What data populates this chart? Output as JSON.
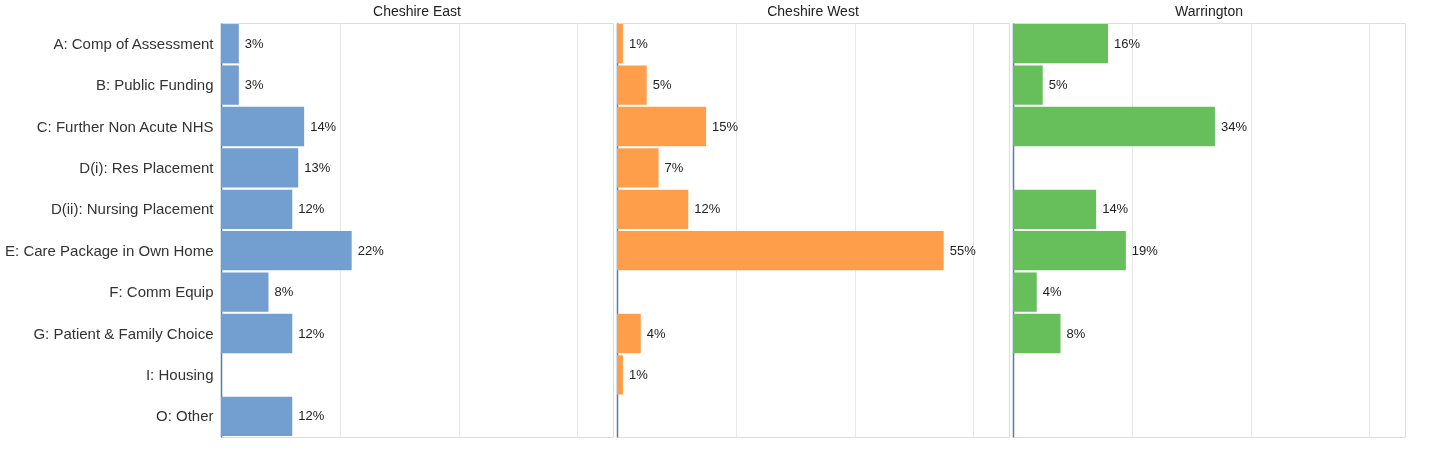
{
  "chart_data": [
    {
      "type": "bar",
      "orientation": "horizontal",
      "title": "Cheshire East",
      "categories": [
        "A: Comp of Assessment",
        "B: Public Funding",
        "C: Further Non Acute NHS",
        "D(i): Res Placement",
        "D(ii): Nursing Placement",
        "E: Care Package in Own Home",
        "F: Comm Equip",
        "G: Patient & Family Choice",
        "I: Housing",
        "O: Other"
      ],
      "values": [
        3,
        3,
        14,
        13,
        12,
        22,
        8,
        12,
        null,
        12
      ],
      "value_labels": [
        "3%",
        "3%",
        "14%",
        "13%",
        "12%",
        "22%",
        "8%",
        "12%",
        null,
        "12%"
      ],
      "color": "#729fcf",
      "xlim": [
        0,
        66
      ],
      "xticks": [
        {
          "value": 20,
          "label": null
        },
        {
          "value": 40,
          "label": null
        },
        {
          "value": 60,
          "label": null
        }
      ],
      "grid": "x",
      "tick_labels": "y"
    },
    {
      "type": "bar",
      "orientation": "horizontal",
      "title": "Cheshire West",
      "categories": [
        null,
        null,
        null,
        null,
        null,
        null,
        null,
        null,
        null,
        null
      ],
      "values": [
        1,
        5,
        15,
        7,
        12,
        55,
        null,
        4,
        1,
        null
      ],
      "value_labels": [
        "1%",
        "5%",
        "15%",
        "7%",
        "12%",
        "55%",
        null,
        "4%",
        "1%",
        null
      ],
      "color": "#ff9e4a",
      "xlim": [
        0,
        66
      ],
      "xticks": [
        {
          "value": 20,
          "label": null
        },
        {
          "value": 40,
          "label": null
        },
        {
          "value": 60,
          "label": null
        }
      ],
      "grid": "x",
      "tick_labels": false
    },
    {
      "type": "bar",
      "orientation": "horizontal",
      "title": "Warrington",
      "categories": [
        null,
        null,
        null,
        null,
        null,
        null,
        null,
        null,
        null,
        null
      ],
      "values": [
        16,
        5,
        34,
        null,
        14,
        19,
        4,
        8,
        null,
        null
      ],
      "value_labels": [
        "16%",
        "5%",
        "34%",
        null,
        "14%",
        "19%",
        "4%",
        "8%",
        null,
        null
      ],
      "color": "#67bf5c",
      "xlim": [
        0,
        66
      ],
      "xticks": [
        {
          "value": 20,
          "label": null
        },
        {
          "value": 40,
          "label": null
        },
        {
          "value": 60,
          "label": null
        }
      ],
      "grid": "x",
      "tick_labels": false
    }
  ]
}
